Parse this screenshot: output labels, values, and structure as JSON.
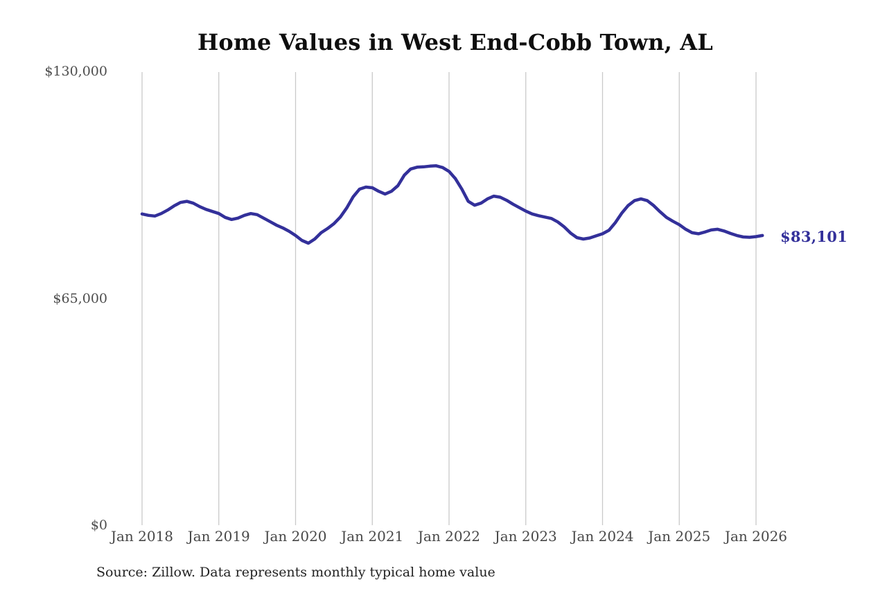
{
  "chart_data": {
    "type": "line",
    "title": "Home Values in West End-Cobb Town, AL",
    "source_note": "Source: Zillow. Data represents monthly typical home value",
    "end_label": "$83,101",
    "final_value": 83101,
    "ylabel": "",
    "xlabel": "",
    "ylim": [
      0,
      130000
    ],
    "y_tick_labels": [
      "$130,000",
      "$65,000",
      "$0"
    ],
    "y_tick_values": [
      130000,
      65000,
      0
    ],
    "x_tick_labels": [
      "Jan 2018",
      "Jan 2019",
      "Jan 2020",
      "Jan 2021",
      "Jan 2022",
      "Jan 2023",
      "Jan 2024",
      "Jan 2025",
      "Jan 2026"
    ],
    "x_start": "Jan 2018",
    "x_end": "Feb 2026",
    "frequency": "monthly",
    "grid": "vertical-only",
    "legend": "none",
    "line_color": "#33309a",
    "grid_color": "#c9c9c9",
    "series": [
      {
        "name": "Typical home value",
        "values": [
          89300,
          88900,
          88700,
          89400,
          90400,
          91600,
          92600,
          92900,
          92400,
          91400,
          90600,
          90000,
          89400,
          88300,
          87700,
          88100,
          88900,
          89400,
          89100,
          88100,
          87100,
          86100,
          85300,
          84300,
          83100,
          81700,
          80900,
          82100,
          83900,
          85100,
          86500,
          88400,
          91000,
          94200,
          96400,
          97000,
          96800,
          95800,
          95000,
          95800,
          97400,
          100400,
          102200,
          102700,
          102800,
          103000,
          103100,
          102600,
          101500,
          99400,
          96400,
          92900,
          91800,
          92400,
          93600,
          94400,
          94100,
          93200,
          92100,
          91100,
          90100,
          89300,
          88800,
          88400,
          88000,
          87000,
          85600,
          83800,
          82500,
          82100,
          82400,
          83000,
          83600,
          84600,
          86800,
          89500,
          91700,
          93100,
          93600,
          93100,
          91700,
          89900,
          88300,
          87200,
          86200,
          84900,
          83900,
          83600,
          84100,
          84700,
          84900,
          84400,
          83700,
          83100,
          82700,
          82600,
          82800,
          83101
        ]
      }
    ]
  }
}
